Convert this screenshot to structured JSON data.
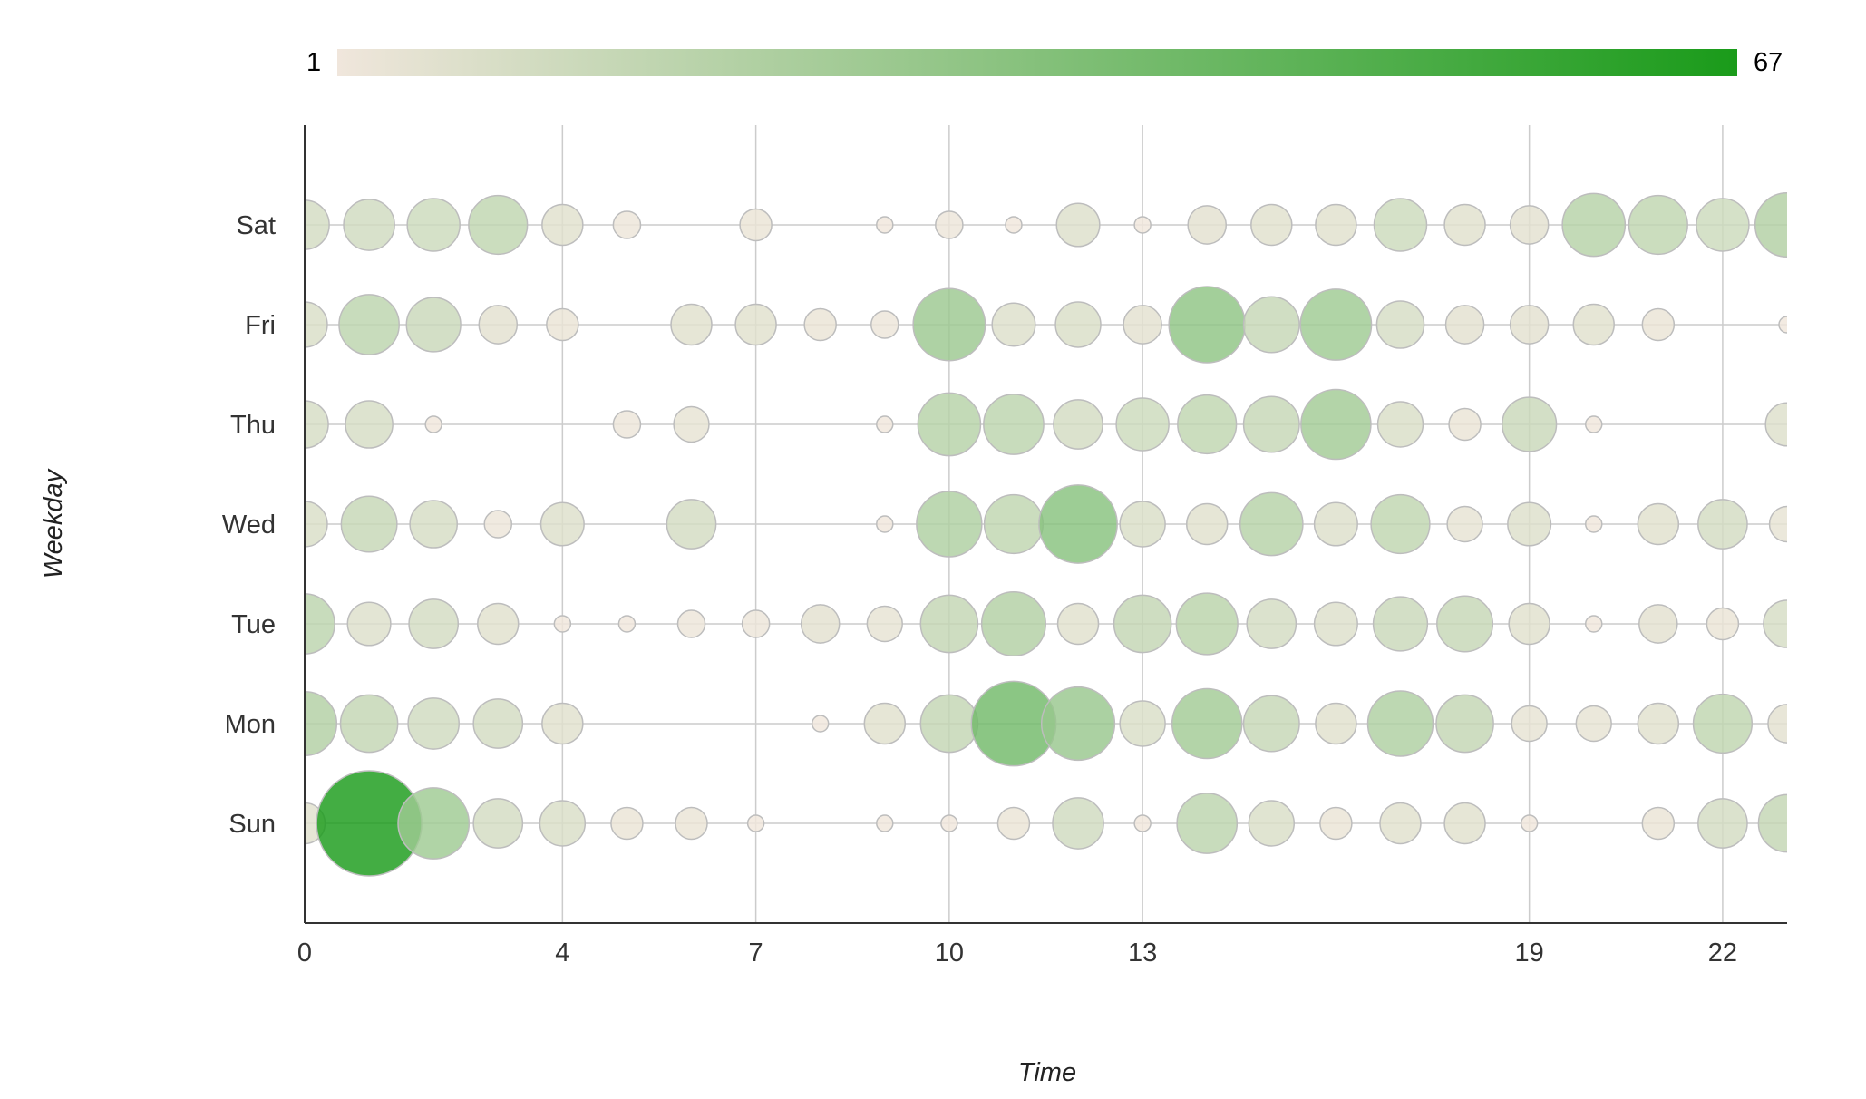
{
  "chart_data": {
    "type": "bubble",
    "xlabel": "Time",
    "ylabel": "Weekday",
    "xlim": [
      0,
      23
    ],
    "xticks": [
      0,
      4,
      7,
      10,
      13,
      19,
      22
    ],
    "ylim": [
      -1,
      7
    ],
    "categories": [
      "Sun",
      "Mon",
      "Tue",
      "Wed",
      "Thu",
      "Fri",
      "Sat"
    ],
    "color_scale": {
      "min": 1,
      "max": 67,
      "min_color": "#f0e6dc",
      "max_color": "#1a9b1a"
    },
    "grid": true,
    "legend": "top colorbar",
    "series": [
      {
        "name": "Sun",
        "values": [
          6,
          67,
          26,
          10,
          8,
          3,
          3,
          1,
          null,
          1,
          1,
          3,
          11,
          1,
          17,
          8,
          3,
          6,
          6,
          1,
          null,
          3,
          10,
          15
        ]
      },
      {
        "name": "Mon",
        "values": [
          20,
          15,
          11,
          10,
          6,
          null,
          null,
          null,
          1,
          6,
          15,
          40,
          28,
          8,
          25,
          14,
          6,
          21,
          15,
          4,
          4,
          6,
          16,
          5
        ]
      },
      {
        "name": "Tue",
        "values": [
          17,
          7,
          10,
          6,
          1,
          1,
          2,
          2,
          5,
          4,
          15,
          20,
          6,
          15,
          18,
          10,
          7,
          13,
          14,
          6,
          1,
          5,
          3,
          9
        ]
      },
      {
        "name": "Wed",
        "values": [
          8,
          14,
          9,
          2,
          7,
          null,
          10,
          null,
          null,
          1,
          21,
          16,
          33,
          8,
          6,
          19,
          7,
          16,
          4,
          7,
          1,
          6,
          10,
          4
        ]
      },
      {
        "name": "Thu",
        "values": [
          9,
          9,
          1,
          null,
          null,
          2,
          4,
          null,
          null,
          1,
          19,
          17,
          10,
          12,
          16,
          14,
          25,
          8,
          3,
          13,
          1,
          null,
          null,
          7
        ]
      },
      {
        "name": "Fri",
        "values": [
          8,
          17,
          13,
          5,
          3,
          null,
          6,
          6,
          3,
          2,
          27,
          7,
          8,
          5,
          31,
          14,
          26,
          9,
          5,
          5,
          6,
          3,
          null,
          1
        ]
      },
      {
        "name": "Sat",
        "values": [
          10,
          11,
          12,
          16,
          6,
          2,
          null,
          3,
          null,
          1,
          2,
          1,
          7,
          1,
          5,
          6,
          6,
          12,
          6,
          5,
          19,
          16,
          12,
          20
        ]
      }
    ]
  }
}
